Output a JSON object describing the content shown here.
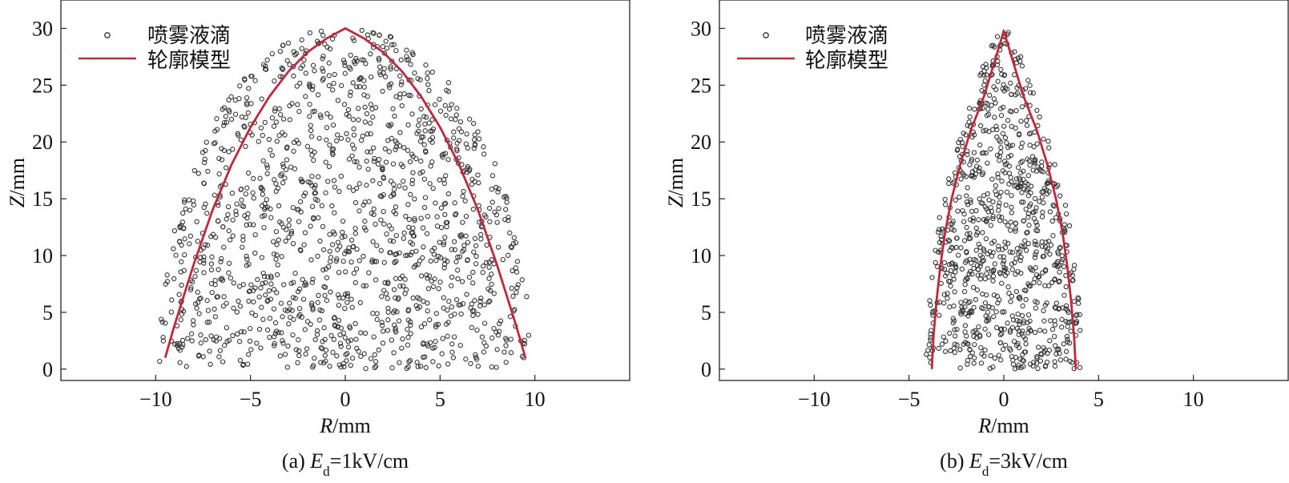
{
  "chart_data": [
    {
      "type": "scatter",
      "panel_label": "(a)",
      "caption_var": "E",
      "caption_sub": "d",
      "caption_value": "=1kV/cm",
      "xlabel_var": "R",
      "xlabel_unit": "/mm",
      "ylabel_var": "Z",
      "ylabel_unit": "/mm",
      "xlim": [
        -15,
        15
      ],
      "ylim": [
        -1,
        32.5
      ],
      "xticks": [
        -10,
        -5,
        0,
        5,
        10
      ],
      "yticks": [
        0,
        5,
        10,
        15,
        20,
        25,
        30
      ],
      "grid": false,
      "legend_position": "top-left",
      "series": [
        {
          "name": "喷雾液滴",
          "kind": "scatter",
          "marker": "open-circle",
          "color": "#333333",
          "n_points": 1400,
          "profile": "dome",
          "r_base": 9.5,
          "z_tip": 30,
          "exponent": 2
        },
        {
          "name": "轮廓模型",
          "kind": "line",
          "color": "#c0283b",
          "x": [
            -9.5,
            -9.0,
            -8.0,
            -7.0,
            -6.0,
            -5.0,
            -4.0,
            -3.0,
            -2.0,
            -1.0,
            0,
            1.0,
            2.0,
            3.0,
            4.0,
            5.0,
            6.0,
            7.0,
            8.0,
            9.0,
            9.5
          ],
          "y": [
            1.0,
            3.9,
            9.2,
            14.0,
            18.0,
            21.3,
            24.0,
            26.2,
            27.9,
            29.1,
            30.0,
            29.1,
            27.9,
            26.2,
            24.0,
            21.3,
            18.0,
            14.0,
            9.2,
            3.9,
            1.0
          ]
        }
      ]
    },
    {
      "type": "scatter",
      "panel_label": "(b)",
      "caption_var": "E",
      "caption_sub": "d",
      "caption_value": "=3kV/cm",
      "xlabel_var": "R",
      "xlabel_unit": "/mm",
      "ylabel_var": "Z",
      "ylabel_unit": "/mm",
      "xlim": [
        -15,
        15
      ],
      "ylim": [
        -1,
        32.5
      ],
      "xticks": [
        -10,
        -5,
        0,
        5,
        10
      ],
      "yticks": [
        0,
        5,
        10,
        15,
        20,
        25,
        30
      ],
      "grid": false,
      "legend_position": "top-left",
      "series": [
        {
          "name": "喷雾液滴",
          "kind": "scatter",
          "marker": "open-circle",
          "color": "#333333",
          "n_points": 900,
          "profile": "cusp",
          "r_base": 3.8,
          "z_tip": 29.8,
          "exponent": 2
        },
        {
          "name": "轮廓模型",
          "kind": "line",
          "color": "#c0283b",
          "x": [
            -3.8,
            -3.7,
            -3.55,
            -3.35,
            -3.1,
            -2.75,
            -2.3,
            -1.75,
            -1.05,
            -0.5,
            0,
            0.5,
            1.05,
            1.75,
            2.3,
            2.75,
            3.1,
            3.35,
            3.55,
            3.7,
            3.8
          ],
          "y": [
            0.0,
            3.0,
            6.0,
            9.0,
            12.0,
            15.0,
            18.0,
            21.0,
            24.0,
            27.0,
            29.8,
            27.0,
            24.0,
            21.0,
            18.0,
            15.0,
            12.0,
            9.0,
            6.0,
            3.0,
            0.0
          ]
        }
      ]
    }
  ]
}
